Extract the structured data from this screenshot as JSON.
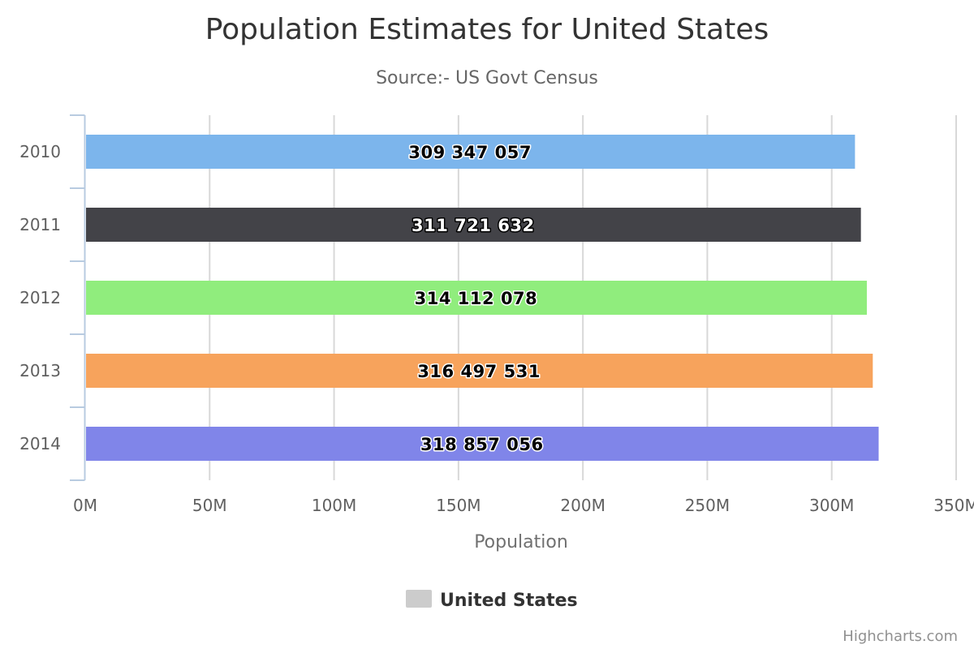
{
  "chart_data": {
    "type": "bar",
    "orientation": "horizontal",
    "title": "Population Estimates for United States",
    "subtitle": "Source:- US Govt Census",
    "categories": [
      "2010",
      "2011",
      "2012",
      "2013",
      "2014"
    ],
    "series": [
      {
        "name": "United States",
        "values": [
          309347057,
          311721632,
          314112078,
          316497531,
          318857056
        ],
        "data_labels": [
          "309 347 057",
          "311 721 632",
          "314 112 078",
          "316 497 531",
          "318 857 056"
        ],
        "colors": [
          "#7cb5ec",
          "#434348",
          "#90ed7d",
          "#f7a35c",
          "#8085e9"
        ]
      }
    ],
    "xlabel": "",
    "ylabel": "Population",
    "value_axis_range": [
      0,
      350000000
    ],
    "value_axis_ticks": [
      0,
      50000000,
      100000000,
      150000000,
      200000000,
      250000000,
      300000000,
      350000000
    ],
    "value_axis_tick_labels": [
      "0M",
      "50M",
      "100M",
      "150M",
      "200M",
      "250M",
      "300M",
      "350M"
    ],
    "grid": true,
    "legend": {
      "position": "bottom-center",
      "label": "United States",
      "swatch_color": "#cccccc"
    },
    "credits": "Highcharts.com"
  }
}
